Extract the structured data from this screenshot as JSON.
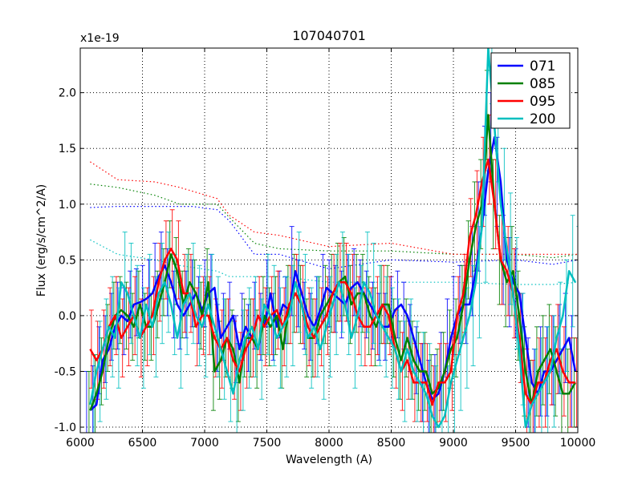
{
  "chart_data": {
    "type": "line",
    "title": "107040701",
    "xlabel": "Wavelength (A)",
    "ylabel": "Flux (erg/s/cm^2/A)",
    "y_multiplier": "x1e-19",
    "xlim": [
      6000,
      10000
    ],
    "ylim": [
      -1.05,
      2.4
    ],
    "xticks": [
      6000,
      6500,
      7000,
      7500,
      8000,
      8500,
      9000,
      9500,
      10000
    ],
    "xtick_labels": [
      "6000",
      "6500",
      "7000",
      "7500",
      "8000",
      "8500",
      "9000",
      "9500",
      "10000"
    ],
    "yticks": [
      -1.0,
      -0.5,
      0.0,
      0.5,
      1.0,
      1.5,
      2.0
    ],
    "ytick_labels": [
      "-1.0",
      "-0.5",
      "0.0",
      "0.5",
      "1.0",
      "1.5",
      "2.0"
    ],
    "grid": true,
    "legend_position": "top-right",
    "x": [
      6080,
      6130,
      6180,
      6230,
      6280,
      6330,
      6380,
      6430,
      6480,
      6530,
      6580,
      6630,
      6680,
      6730,
      6780,
      6830,
      6880,
      6930,
      6980,
      7030,
      7080,
      7130,
      7180,
      7230,
      7280,
      7330,
      7380,
      7430,
      7480,
      7530,
      7580,
      7630,
      7680,
      7730,
      7780,
      7830,
      7880,
      7930,
      7980,
      8030,
      8080,
      8130,
      8180,
      8230,
      8280,
      8330,
      8380,
      8430,
      8480,
      8530,
      8580,
      8630,
      8680,
      8730,
      8780,
      8830,
      8880,
      8930,
      8980,
      9030,
      9080,
      9130,
      9180,
      9230,
      9280,
      9330,
      9380,
      9430,
      9480,
      9530,
      9580,
      9630,
      9680,
      9730,
      9780,
      9830,
      9880,
      9930,
      9980
    ],
    "series": [
      {
        "name": "071",
        "color": "#0000ff",
        "values": [
          -0.85,
          -0.8,
          -0.4,
          -0.3,
          -0.1,
          0.0,
          -0.05,
          0.1,
          0.12,
          0.15,
          0.2,
          0.35,
          0.45,
          0.3,
          0.1,
          0.0,
          0.1,
          0.2,
          0.05,
          0.2,
          0.25,
          -0.2,
          -0.1,
          0.0,
          -0.3,
          -0.1,
          -0.2,
          0.0,
          -0.1,
          0.2,
          -0.1,
          0.1,
          0.05,
          0.4,
          0.2,
          0.0,
          -0.1,
          0.05,
          0.25,
          0.2,
          0.15,
          0.1,
          0.25,
          0.3,
          0.2,
          0.1,
          0.0,
          -0.1,
          -0.1,
          0.05,
          0.1,
          0.0,
          -0.2,
          -0.4,
          -0.6,
          -0.75,
          -0.7,
          -0.5,
          -0.2,
          0.0,
          0.1,
          0.1,
          0.4,
          0.8,
          1.3,
          1.6,
          1.2,
          0.5,
          0.3,
          0.2,
          -0.2,
          -0.6,
          -0.7,
          -0.5,
          -0.5,
          -0.4,
          -0.3,
          -0.2,
          -0.5
        ],
        "errors": [
          0.35,
          0.35,
          0.3,
          0.3,
          0.3,
          0.3,
          0.3,
          0.3,
          0.3,
          0.3,
          0.3,
          0.3,
          0.3,
          0.3,
          0.3,
          0.3,
          0.3,
          0.3,
          0.3,
          0.3,
          0.3,
          0.3,
          0.3,
          0.3,
          0.3,
          0.3,
          0.3,
          0.3,
          0.3,
          0.3,
          0.3,
          0.3,
          0.3,
          0.4,
          0.3,
          0.3,
          0.3,
          0.3,
          0.3,
          0.3,
          0.3,
          0.3,
          0.3,
          0.3,
          0.3,
          0.3,
          0.3,
          0.3,
          0.3,
          0.3,
          0.3,
          0.3,
          0.3,
          0.3,
          0.35,
          0.35,
          0.35,
          0.35,
          0.35,
          0.35,
          0.35,
          0.35,
          0.4,
          0.4,
          0.4,
          0.4,
          0.4,
          0.4,
          0.4,
          0.4,
          0.4,
          0.4,
          0.4,
          0.4,
          0.4,
          0.4,
          0.4,
          0.4,
          0.5
        ]
      },
      {
        "name": "085",
        "color": "#008000",
        "values": [
          -0.85,
          -0.7,
          -0.5,
          -0.2,
          0.0,
          0.05,
          0.0,
          -0.1,
          0.1,
          -0.1,
          -0.1,
          0.1,
          0.3,
          0.55,
          0.4,
          0.1,
          0.3,
          0.2,
          0.0,
          0.3,
          -0.5,
          -0.4,
          -0.2,
          -0.3,
          -0.6,
          -0.2,
          -0.2,
          -0.3,
          0.0,
          -0.1,
          0.0,
          -0.3,
          0.1,
          0.2,
          0.1,
          -0.2,
          -0.2,
          0.0,
          0.1,
          0.2,
          0.3,
          0.35,
          0.1,
          0.2,
          0.2,
          0.0,
          -0.1,
          0.1,
          0.1,
          -0.2,
          -0.4,
          -0.2,
          -0.4,
          -0.5,
          -0.5,
          -0.7,
          -0.65,
          -0.5,
          -0.3,
          -0.2,
          0.1,
          0.5,
          0.8,
          1.0,
          1.8,
          1.0,
          0.5,
          0.3,
          0.4,
          0.0,
          -0.5,
          -0.8,
          -0.5,
          -0.4,
          -0.3,
          -0.5,
          -0.7,
          -0.7,
          -0.6
        ],
        "errors": [
          0.35,
          0.35,
          0.3,
          0.3,
          0.3,
          0.3,
          0.3,
          0.3,
          0.3,
          0.3,
          0.3,
          0.3,
          0.3,
          0.3,
          0.3,
          0.3,
          0.3,
          0.3,
          0.3,
          0.3,
          0.35,
          0.35,
          0.35,
          0.35,
          0.35,
          0.35,
          0.35,
          0.35,
          0.35,
          0.35,
          0.35,
          0.35,
          0.35,
          0.35,
          0.35,
          0.35,
          0.35,
          0.35,
          0.35,
          0.35,
          0.35,
          0.35,
          0.35,
          0.35,
          0.35,
          0.35,
          0.35,
          0.35,
          0.35,
          0.35,
          0.35,
          0.35,
          0.35,
          0.35,
          0.35,
          0.35,
          0.35,
          0.35,
          0.35,
          0.35,
          0.35,
          0.35,
          0.4,
          0.4,
          0.4,
          0.4,
          0.4,
          0.4,
          0.4,
          0.4,
          0.4,
          0.4,
          0.4,
          0.4,
          0.4,
          0.4,
          0.4,
          0.4,
          0.4
        ]
      },
      {
        "name": "095",
        "color": "#ff0000",
        "values": [
          -0.3,
          -0.4,
          -0.3,
          -0.1,
          0.0,
          -0.2,
          -0.1,
          0.0,
          -0.2,
          -0.1,
          0.0,
          0.3,
          0.5,
          0.6,
          0.5,
          0.2,
          0.2,
          -0.1,
          0.0,
          0.0,
          -0.2,
          -0.3,
          -0.2,
          -0.4,
          -0.5,
          -0.3,
          -0.2,
          0.0,
          -0.1,
          0.0,
          0.05,
          -0.1,
          0.1,
          0.2,
          0.1,
          -0.1,
          -0.2,
          -0.1,
          0.0,
          0.2,
          0.3,
          0.3,
          0.2,
          0.0,
          -0.1,
          -0.1,
          0.0,
          0.1,
          0.0,
          -0.3,
          -0.5,
          -0.4,
          -0.6,
          -0.6,
          -0.6,
          -0.8,
          -0.6,
          -0.6,
          -0.5,
          0.0,
          0.2,
          0.7,
          0.9,
          1.2,
          1.4,
          1.0,
          0.5,
          0.4,
          0.2,
          -0.2,
          -0.7,
          -0.8,
          -0.6,
          -0.6,
          -0.4,
          -0.3,
          -0.5,
          -0.6,
          -0.6
        ],
        "errors": [
          0.35,
          0.35,
          0.35,
          0.35,
          0.35,
          0.35,
          0.35,
          0.35,
          0.35,
          0.35,
          0.35,
          0.35,
          0.35,
          0.35,
          0.35,
          0.35,
          0.35,
          0.35,
          0.35,
          0.35,
          0.35,
          0.35,
          0.35,
          0.35,
          0.35,
          0.35,
          0.35,
          0.35,
          0.35,
          0.35,
          0.35,
          0.35,
          0.35,
          0.35,
          0.35,
          0.35,
          0.35,
          0.35,
          0.35,
          0.35,
          0.35,
          0.35,
          0.35,
          0.35,
          0.35,
          0.35,
          0.35,
          0.35,
          0.35,
          0.35,
          0.35,
          0.35,
          0.35,
          0.35,
          0.35,
          0.35,
          0.35,
          0.35,
          0.35,
          0.35,
          0.35,
          0.35,
          0.4,
          0.4,
          0.4,
          0.4,
          0.4,
          0.4,
          0.4,
          0.4,
          0.4,
          0.4,
          0.4,
          0.4,
          0.4,
          0.4,
          0.4,
          0.4,
          0.4
        ]
      },
      {
        "name": "200",
        "color": "#00bfbf",
        "values": [
          -0.8,
          -0.5,
          -0.3,
          -0.1,
          -0.2,
          0.3,
          0.2,
          0.0,
          -0.2,
          0.1,
          -0.1,
          0.2,
          0.3,
          0.1,
          -0.2,
          0.1,
          0.2,
          0.0,
          -0.1,
          0.1,
          -0.1,
          -0.3,
          -0.5,
          -0.7,
          -0.4,
          -0.2,
          -0.1,
          -0.3,
          0.1,
          0.0,
          -0.2,
          -0.1,
          0.0,
          0.3,
          0.1,
          -0.2,
          -0.1,
          -0.3,
          -0.1,
          0.1,
          0.3,
          0.1,
          -0.2,
          0.0,
          0.3,
          0.2,
          0.0,
          -0.1,
          -0.2,
          -0.3,
          -0.5,
          -0.3,
          -0.5,
          -0.6,
          -0.7,
          -0.9,
          -1.0,
          -0.9,
          -0.6,
          -0.4,
          -0.2,
          0.0,
          0.3,
          0.8,
          2.4,
          1.7,
          1.0,
          0.6,
          0.2,
          -0.3,
          -1.0,
          -0.8,
          -0.7,
          -0.6,
          -0.5,
          -0.2,
          0.0,
          0.4,
          0.3
        ],
        "errors": [
          0.45,
          0.45,
          0.45,
          0.45,
          0.45,
          0.45,
          0.45,
          0.45,
          0.45,
          0.45,
          0.45,
          0.45,
          0.45,
          0.45,
          0.45,
          0.45,
          0.45,
          0.45,
          0.45,
          0.45,
          0.45,
          0.45,
          0.45,
          0.45,
          0.45,
          0.45,
          0.45,
          0.45,
          0.45,
          0.45,
          0.45,
          0.45,
          0.45,
          0.45,
          0.45,
          0.45,
          0.45,
          0.45,
          0.45,
          0.45,
          0.45,
          0.45,
          0.45,
          0.45,
          0.45,
          0.45,
          0.45,
          0.45,
          0.45,
          0.45,
          0.45,
          0.45,
          0.45,
          0.45,
          0.45,
          0.45,
          0.45,
          0.45,
          0.45,
          0.45,
          0.45,
          0.45,
          0.5,
          0.5,
          0.5,
          0.5,
          0.5,
          0.5,
          0.5,
          0.5,
          0.5,
          0.5,
          0.5,
          0.5,
          0.5,
          0.5,
          0.5,
          0.5,
          0.5
        ]
      }
    ],
    "noise_curves": [
      {
        "series": "071",
        "color": "#0000ff",
        "x": [
          6080,
          6300,
          6600,
          6900,
          7100,
          7200,
          7400,
          7600,
          8000,
          8500,
          9000,
          9500,
          9800,
          10000
        ],
        "y": [
          0.97,
          0.98,
          0.98,
          0.98,
          0.95,
          0.85,
          0.55,
          0.55,
          0.42,
          0.5,
          0.48,
          0.5,
          0.46,
          0.5
        ]
      },
      {
        "series": "085",
        "color": "#008000",
        "x": [
          6080,
          6300,
          6600,
          6800,
          7100,
          7200,
          7400,
          7600,
          8000,
          8500,
          9000,
          9500,
          9800,
          10000
        ],
        "y": [
          1.18,
          1.15,
          1.08,
          1.0,
          1.0,
          0.88,
          0.65,
          0.6,
          0.58,
          0.58,
          0.55,
          0.55,
          0.52,
          0.55
        ]
      },
      {
        "series": "095",
        "color": "#ff0000",
        "x": [
          6080,
          6300,
          6600,
          6800,
          7100,
          7200,
          7400,
          7600,
          8000,
          8500,
          9000,
          9500,
          9800,
          10000
        ],
        "y": [
          1.38,
          1.22,
          1.2,
          1.15,
          1.05,
          0.9,
          0.75,
          0.72,
          0.62,
          0.65,
          0.55,
          0.55,
          0.55,
          0.55
        ]
      },
      {
        "series": "200",
        "color": "#00bfbf",
        "x": [
          6080,
          6300,
          6600,
          6800,
          7100,
          7200,
          7400,
          7600,
          8000,
          8500,
          9000,
          9500,
          9800,
          10000
        ],
        "y": [
          0.68,
          0.55,
          0.5,
          0.45,
          0.4,
          0.35,
          0.35,
          0.35,
          0.3,
          0.3,
          0.3,
          0.28,
          0.28,
          0.3
        ]
      }
    ]
  }
}
